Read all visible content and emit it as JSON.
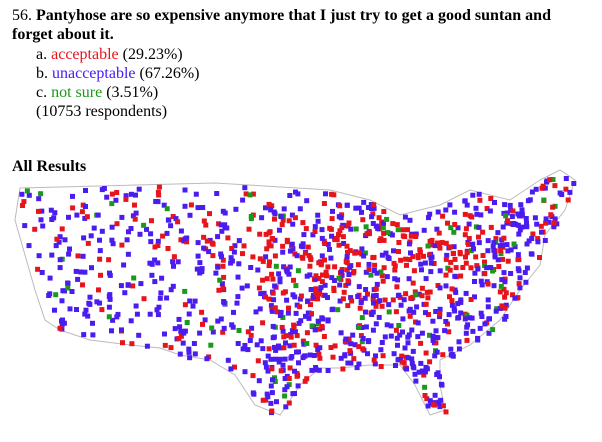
{
  "question": {
    "number": "56.",
    "text": "Pantyhose are so expensive anymore that I just try to get a good suntan and forget about it."
  },
  "options": [
    {
      "letter": "a.",
      "label": "acceptable",
      "percent": "(29.23%)",
      "color": "#e8141c"
    },
    {
      "letter": "b.",
      "label": "unacceptable",
      "percent": "(67.26%)",
      "color": "#4a1cf0"
    },
    {
      "letter": "c.",
      "label": "not sure",
      "percent": "(3.51%)",
      "color": "#1a9a1a"
    }
  ],
  "respondents": "(10753 respondents)",
  "section_title": "All Results"
}
